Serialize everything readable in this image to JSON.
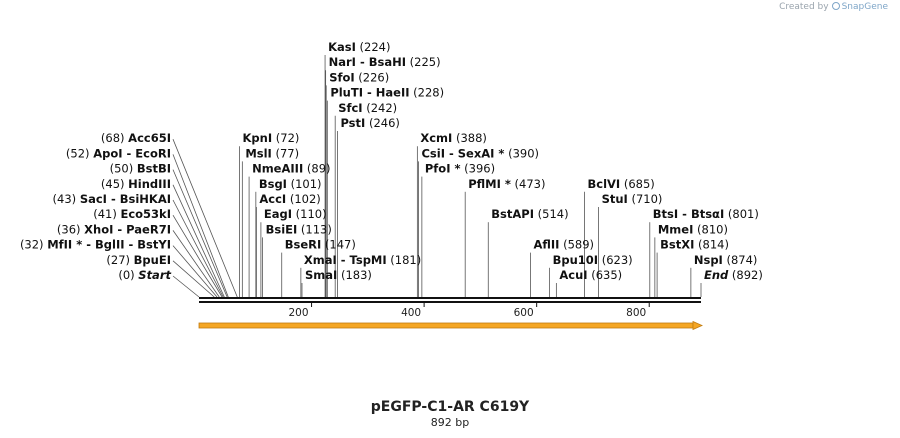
{
  "credit": {
    "prefix": "Created by",
    "brand": "SnapGene",
    "icon": "snapgene-logo-icon"
  },
  "plasmid": {
    "name": "pEGFP-C1-AR C619Y",
    "length_label": "892 bp"
  },
  "colors": {
    "arrow": "#f5a623",
    "arrow_edge": "#c27c12",
    "line": "#111111",
    "leader": "#555555"
  },
  "ruler": {
    "ticks": [
      200,
      400,
      600,
      800
    ]
  },
  "axis": {
    "start": 0,
    "end": 892
  },
  "sites": [
    {
      "name": "Start",
      "pos": 0,
      "pos_label": "(0)",
      "style": "italic",
      "side": "left",
      "line": 0
    },
    {
      "name": "BpuEI",
      "pos": 27,
      "pos_label": "(27)",
      "side": "left",
      "line": 1
    },
    {
      "name": "MfII * - BglII - BstYI",
      "pos": 32,
      "pos_label": "(32)",
      "side": "left",
      "line": 2
    },
    {
      "name": "XhoI - PaeR7I",
      "pos": 36,
      "pos_label": "(36)",
      "side": "left",
      "line": 3
    },
    {
      "name": "Eco53kI",
      "pos": 41,
      "pos_label": "(41)",
      "side": "left",
      "line": 4
    },
    {
      "name": "SacI - BsiHKAI",
      "pos": 43,
      "pos_label": "(43)",
      "side": "left",
      "line": 5
    },
    {
      "name": "HindIII",
      "pos": 45,
      "pos_label": "(45)",
      "side": "left",
      "line": 6
    },
    {
      "name": "BstBI",
      "pos": 50,
      "pos_label": "(50)",
      "side": "left",
      "line": 7
    },
    {
      "name": "ApoI - EcoRI",
      "pos": 52,
      "pos_label": "(52)",
      "side": "left",
      "line": 8
    },
    {
      "name": "Acc65I",
      "pos": 68,
      "pos_label": "(68)",
      "side": "left",
      "line": 9
    },
    {
      "name": "KpnI",
      "pos": 72,
      "pos_label": "(72)",
      "side": "right",
      "line": 9
    },
    {
      "name": "MslI",
      "pos": 77,
      "pos_label": "(77)",
      "side": "right",
      "line": 8
    },
    {
      "name": "NmeAIII",
      "pos": 89,
      "pos_label": "(89)",
      "side": "right",
      "line": 7
    },
    {
      "name": "BsgI",
      "pos": 101,
      "pos_label": "(101)",
      "side": "right",
      "line": 6
    },
    {
      "name": "AccI",
      "pos": 102,
      "pos_label": "(102)",
      "side": "right",
      "line": 5
    },
    {
      "name": "EagI",
      "pos": 110,
      "pos_label": "(110)",
      "side": "right",
      "line": 4
    },
    {
      "name": "BsiEI",
      "pos": 113,
      "pos_label": "(113)",
      "side": "right",
      "line": 3
    },
    {
      "name": "BseRI",
      "pos": 147,
      "pos_label": "(147)",
      "side": "right",
      "line": 2
    },
    {
      "name": "XmaI - TspMI",
      "pos": 181,
      "pos_label": "(181)",
      "side": "right",
      "line": 1
    },
    {
      "name": "SmaI",
      "pos": 183,
      "pos_label": "(183)",
      "side": "right",
      "line": 0
    },
    {
      "name": "KasI",
      "pos": 224,
      "pos_label": "(224)",
      "side": "right",
      "line": 15
    },
    {
      "name": "NarI - BsaHI",
      "pos": 225,
      "pos_label": "(225)",
      "side": "right",
      "line": 14
    },
    {
      "name": "SfoI",
      "pos": 226,
      "pos_label": "(226)",
      "side": "right",
      "line": 13
    },
    {
      "name": "PluTI - HaeII",
      "pos": 228,
      "pos_label": "(228)",
      "side": "right",
      "line": 12
    },
    {
      "name": "SfcI",
      "pos": 242,
      "pos_label": "(242)",
      "side": "right",
      "line": 11
    },
    {
      "name": "PstI",
      "pos": 246,
      "pos_label": "(246)",
      "side": "right",
      "line": 10
    },
    {
      "name": "XcmI",
      "pos": 388,
      "pos_label": "(388)",
      "side": "right",
      "line": 9
    },
    {
      "name": "CsiI - SexAI *",
      "pos": 390,
      "pos_label": "(390)",
      "side": "right",
      "line": 8
    },
    {
      "name": "PfoI *",
      "pos": 396,
      "pos_label": "(396)",
      "side": "right",
      "line": 7
    },
    {
      "name": "PflMI *",
      "pos": 473,
      "pos_label": "(473)",
      "side": "right",
      "line": 6
    },
    {
      "name": "BstAPI",
      "pos": 514,
      "pos_label": "(514)",
      "side": "right",
      "line": 4
    },
    {
      "name": "AflII",
      "pos": 589,
      "pos_label": "(589)",
      "side": "right",
      "line": 2
    },
    {
      "name": "Bpu10I",
      "pos": 623,
      "pos_label": "(623)",
      "side": "right",
      "line": 1
    },
    {
      "name": "AcuI",
      "pos": 635,
      "pos_label": "(635)",
      "side": "right",
      "line": 0
    },
    {
      "name": "BclVI",
      "pos": 685,
      "pos_label": "(685)",
      "side": "right",
      "line": 6
    },
    {
      "name": "StuI",
      "pos": 710,
      "pos_label": "(710)",
      "side": "right",
      "line": 5
    },
    {
      "name": "BtsI - BtsαI",
      "pos": 801,
      "pos_label": "(801)",
      "side": "right",
      "line": 4
    },
    {
      "name": "MmeI",
      "pos": 810,
      "pos_label": "(810)",
      "side": "right",
      "line": 3
    },
    {
      "name": "BstXI",
      "pos": 814,
      "pos_label": "(814)",
      "side": "right",
      "line": 2
    },
    {
      "name": "NspI",
      "pos": 874,
      "pos_label": "(874)",
      "side": "right",
      "line": 1
    },
    {
      "name": "End",
      "pos": 892,
      "pos_label": "(892)",
      "style": "italic",
      "side": "right",
      "line": 0
    }
  ]
}
